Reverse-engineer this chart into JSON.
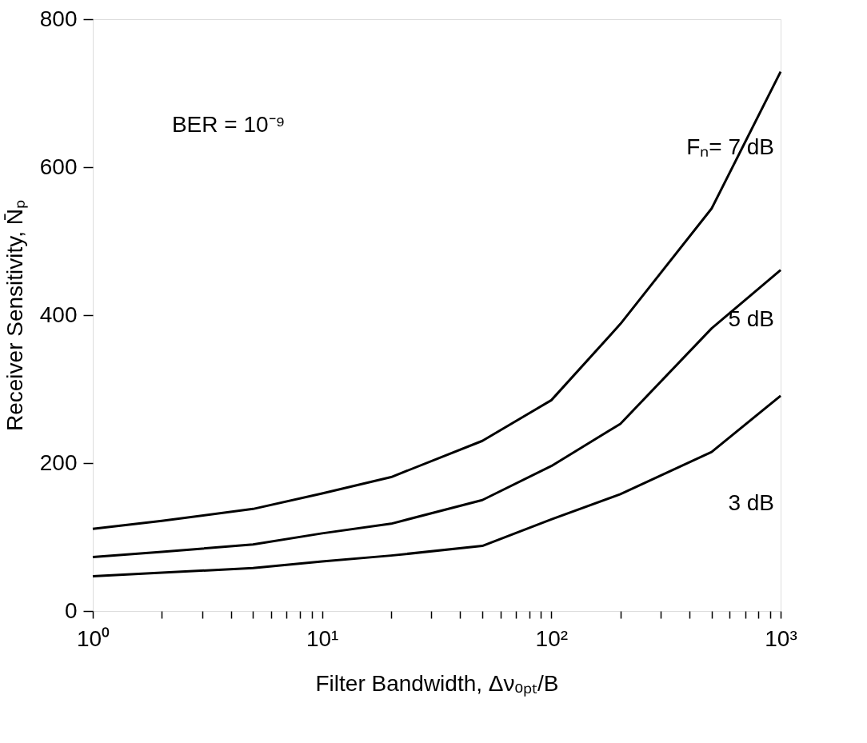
{
  "chart_data": {
    "type": "line",
    "xlabel": "Filter Bandwidth, Δνₒₚₜ/B",
    "ylabel": "Receiver Sensitivity, N̄ₚ",
    "annotations": [
      "BER = 10⁻⁹"
    ],
    "log": "x",
    "xlim": [
      1,
      1000
    ],
    "xticks": [
      {
        "value": 1,
        "label": "10⁰"
      },
      {
        "value": 2,
        "label": null
      },
      {
        "value": 3,
        "label": null
      },
      {
        "value": 4,
        "label": null
      },
      {
        "value": 5,
        "label": null
      },
      {
        "value": 6,
        "label": null
      },
      {
        "value": 7,
        "label": null
      },
      {
        "value": 8,
        "label": null
      },
      {
        "value": 9,
        "label": null
      },
      {
        "value": 10,
        "label": "10¹"
      },
      {
        "value": 20,
        "label": null
      },
      {
        "value": 30,
        "label": null
      },
      {
        "value": 40,
        "label": null
      },
      {
        "value": 50,
        "label": null
      },
      {
        "value": 60,
        "label": null
      },
      {
        "value": 70,
        "label": null
      },
      {
        "value": 80,
        "label": null
      },
      {
        "value": 90,
        "label": null
      },
      {
        "value": 100,
        "label": "10²"
      },
      {
        "value": 200,
        "label": null
      },
      {
        "value": 300,
        "label": null
      },
      {
        "value": 400,
        "label": null
      },
      {
        "value": 500,
        "label": null
      },
      {
        "value": 600,
        "label": null
      },
      {
        "value": 700,
        "label": null
      },
      {
        "value": 800,
        "label": null
      },
      {
        "value": 900,
        "label": null
      },
      {
        "value": 1000,
        "label": "10³"
      }
    ],
    "ylim": [
      0,
      800
    ],
    "yticks": [
      0,
      200,
      400,
      600,
      800
    ],
    "grid": false,
    "legend": false,
    "marker": "none",
    "line_style": "solid",
    "x": [
      1,
      2,
      5,
      10,
      20,
      50,
      100,
      200,
      500,
      1000
    ],
    "series": [
      {
        "name": "Fₙ= 7 dB",
        "color": "#000000",
        "values": [
          111,
          122,
          138,
          159,
          181,
          230,
          285,
          388,
          544,
          729
        ]
      },
      {
        "name": "5 dB",
        "color": "#000000",
        "values": [
          73,
          80,
          90,
          105,
          118,
          150,
          196,
          253,
          382,
          461
        ]
      },
      {
        "name": "3 dB",
        "color": "#000000",
        "values": [
          47,
          52,
          58,
          67,
          75,
          88,
          124,
          158,
          215,
          291
        ]
      }
    ]
  }
}
